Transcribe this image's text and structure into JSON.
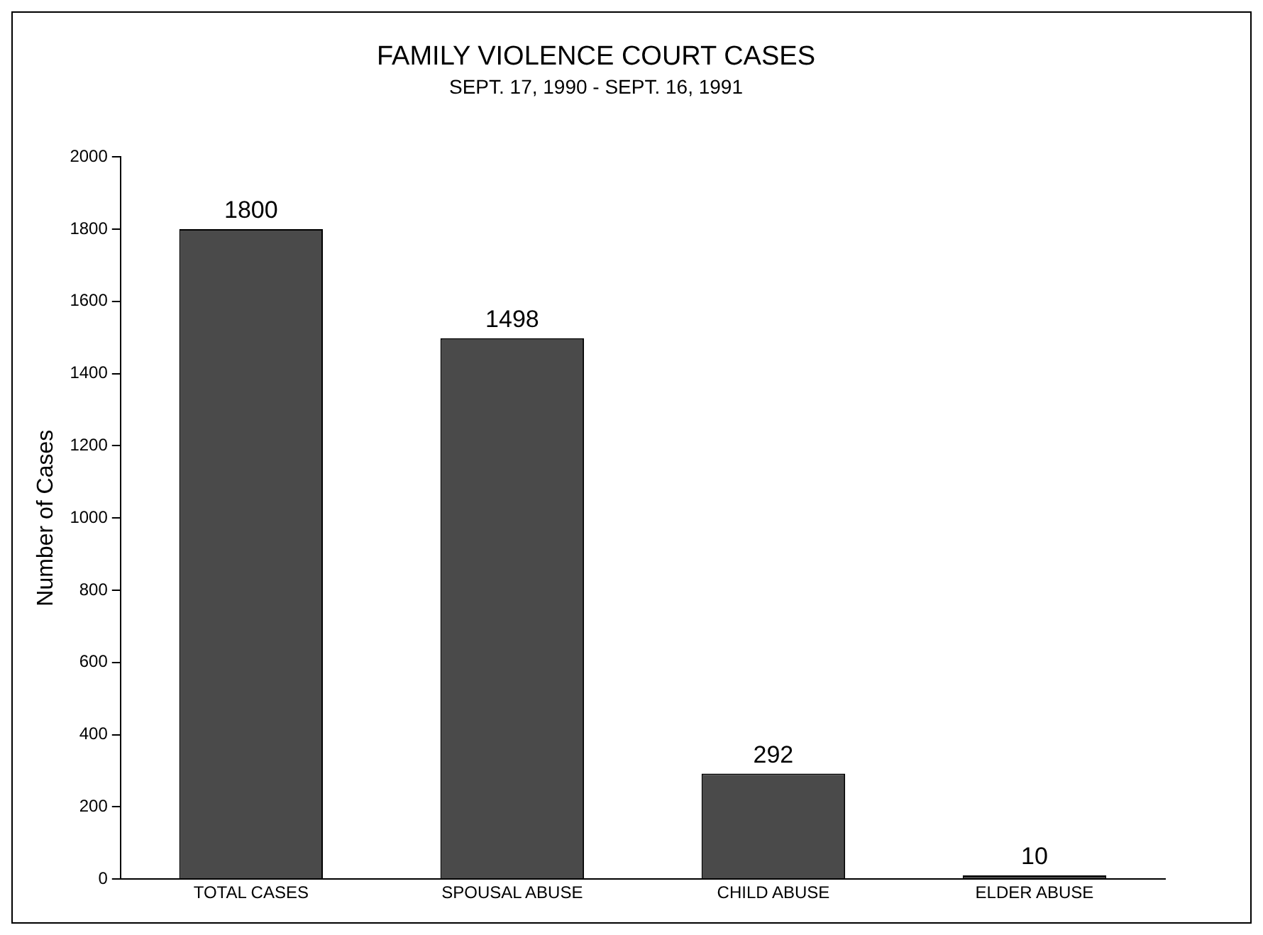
{
  "chart_data": {
    "type": "bar",
    "title": "FAMILY VIOLENCE COURT CASES",
    "subtitle": "SEPT. 17, 1990 - SEPT. 16, 1991",
    "ylabel": "Number of Cases",
    "categories": [
      "TOTAL CASES",
      "SPOUSAL ABUSE",
      "CHILD ABUSE",
      "ELDER ABUSE"
    ],
    "values": [
      1800,
      1498,
      292,
      10
    ],
    "color": "#4a4a4a",
    "ylim": [
      0,
      2000
    ],
    "yticks": [
      0,
      200,
      400,
      600,
      800,
      1000,
      1200,
      1400,
      1600,
      1800,
      2000
    ],
    "data_labels": true,
    "grid": false,
    "legend": false
  }
}
